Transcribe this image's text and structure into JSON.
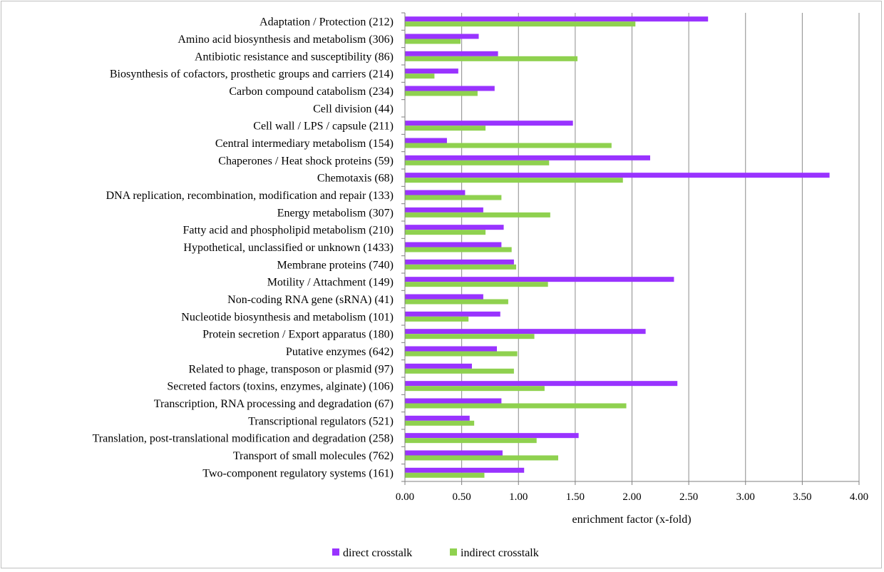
{
  "colors": {
    "direct": "#9933ff",
    "indirect": "#8fd14f",
    "grid": "#8c8c8c",
    "axis": "#7f7f7f"
  },
  "chart_data": {
    "type": "bar",
    "orientation": "horizontal",
    "title": "",
    "xlabel": "enrichment factor (x-fold)",
    "ylabel": "",
    "xlim": [
      0,
      4
    ],
    "xticks": [
      "0.00",
      "0.50",
      "1.00",
      "1.50",
      "2.00",
      "2.50",
      "3.00",
      "3.50",
      "4.00"
    ],
    "grid": true,
    "legend_position": "bottom",
    "categories": [
      "Adaptation / Protection (212)",
      "Amino acid biosynthesis and metabolism (306)",
      "Antibiotic resistance and susceptibility (86)",
      "Biosynthesis of cofactors, prosthetic groups and carriers (214)",
      "Carbon compound catabolism (234)",
      "Cell division (44)",
      "Cell wall / LPS / capsule (211)",
      "Central intermediary metabolism (154)",
      "Chaperones / Heat shock proteins (59)",
      "Chemotaxis (68)",
      "DNA replication, recombination, modification and repair (133)",
      "Energy metabolism (307)",
      "Fatty acid and phospholipid metabolism (210)",
      "Hypothetical, unclassified or unknown (1433)",
      "Membrane proteins (740)",
      "Motility / Attachment (149)",
      "Non-coding RNA gene (sRNA) (41)",
      "Nucleotide biosynthesis and metabolism (101)",
      "Protein secretion / Export apparatus (180)",
      "Putative enzymes (642)",
      "Related to phage, transposon or plasmid (97)",
      "Secreted factors (toxins, enzymes, alginate) (106)",
      "Transcription, RNA processing and degradation (67)",
      "Transcriptional regulators (521)",
      "Translation, post-translational modification and degradation (258)",
      "Transport of small molecules (762)",
      "Two-component regulatory systems (161)"
    ],
    "series": [
      {
        "name": "direct crosstalk",
        "values": [
          2.67,
          0.65,
          0.82,
          0.47,
          0.79,
          0.0,
          1.48,
          0.37,
          2.16,
          3.74,
          0.53,
          0.69,
          0.87,
          0.85,
          0.96,
          2.37,
          0.69,
          0.84,
          2.12,
          0.81,
          0.59,
          2.4,
          0.85,
          0.57,
          1.53,
          0.86,
          1.05
        ]
      },
      {
        "name": "indirect crosstalk",
        "values": [
          2.03,
          0.49,
          1.52,
          0.26,
          0.64,
          0.0,
          0.71,
          1.82,
          1.27,
          1.92,
          0.85,
          1.28,
          0.71,
          0.94,
          0.98,
          1.26,
          0.91,
          0.56,
          1.14,
          0.99,
          0.96,
          1.23,
          1.95,
          0.61,
          1.16,
          1.35,
          0.7
        ]
      }
    ]
  }
}
